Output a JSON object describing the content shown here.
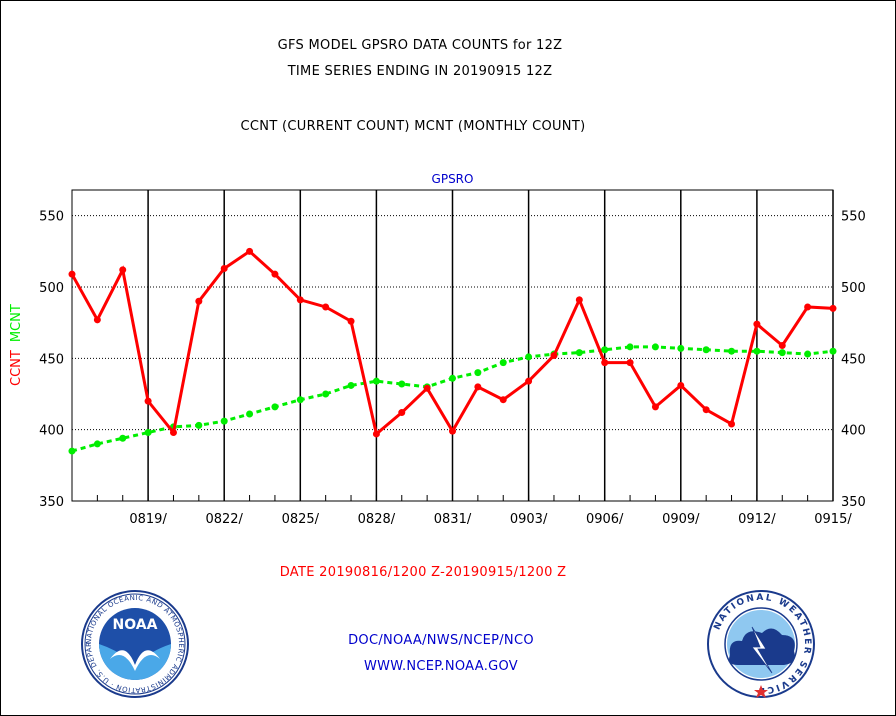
{
  "header": {
    "title_line1": "GFS MODEL GPSRO DATA COUNTS for 12Z",
    "title_line2": "TIME SERIES ENDING IN 20190915 12Z",
    "subtitle": "CCNT (CURRENT COUNT) MCNT (MONTHLY COUNT)"
  },
  "footer": {
    "date_range": "DATE 20190816/1200 Z-20190915/1200 Z",
    "org_line": "DOC/NOAA/NWS/NCEP/NCO",
    "website": "WWW.NCEP.NOAA.GOV",
    "noaa_logo_text": "NOAA",
    "noaa_ring_text": "NATIONAL OCEANIC AND ATMOSPHERIC ADMINISTRATION · U.S. DEPARTMENT OF COMMERCE",
    "nws_ring_text": "NATIONAL WEATHER SERVICE"
  },
  "colors": {
    "ccnt": "#ff0000",
    "mcnt": "#00ee00",
    "panel_label": "#0000cc",
    "link": "#0000cc",
    "date": "#ff0000"
  },
  "chart_data": {
    "type": "line",
    "title": "GPSRO",
    "ylabel_ccnt": "CCNT",
    "ylabel_mcnt": "MCNT",
    "ylim": [
      350,
      568
    ],
    "yticks": [
      350,
      400,
      450,
      500,
      550
    ],
    "x_days": [
      1,
      31
    ],
    "xtick_labels": [
      "0819/",
      "0822/",
      "0825/",
      "0828/",
      "0831/",
      "0903/",
      "0906/",
      "0909/",
      "0912/",
      "0915/"
    ],
    "xtick_days": [
      4,
      7,
      10,
      13,
      16,
      19,
      22,
      25,
      28,
      31
    ],
    "dates": [
      "0816",
      "0817",
      "0818",
      "0819",
      "0820",
      "0821",
      "0822",
      "0823",
      "0824",
      "0825",
      "0826",
      "0827",
      "0828",
      "0829",
      "0830",
      "0831",
      "0901",
      "0902",
      "0903",
      "0904",
      "0905",
      "0906",
      "0907",
      "0908",
      "0909",
      "0910",
      "0911",
      "0912",
      "0913",
      "0914",
      "0915"
    ],
    "grid": true,
    "series": [
      {
        "name": "CCNT",
        "values": [
          509,
          477,
          512,
          420,
          398,
          490,
          513,
          525,
          509,
          491,
          486,
          476,
          397,
          412,
          429,
          399,
          430,
          421,
          434,
          452,
          491,
          447,
          447,
          416,
          431,
          414,
          404,
          474,
          459,
          486,
          485
        ]
      },
      {
        "name": "MCNT",
        "values": [
          385,
          390,
          394,
          398,
          402,
          403,
          406,
          411,
          416,
          421,
          425,
          431,
          434,
          432,
          430,
          436,
          440,
          447,
          451,
          453,
          454,
          456,
          458,
          458,
          457,
          456,
          455,
          455,
          454,
          453,
          455
        ]
      }
    ]
  }
}
